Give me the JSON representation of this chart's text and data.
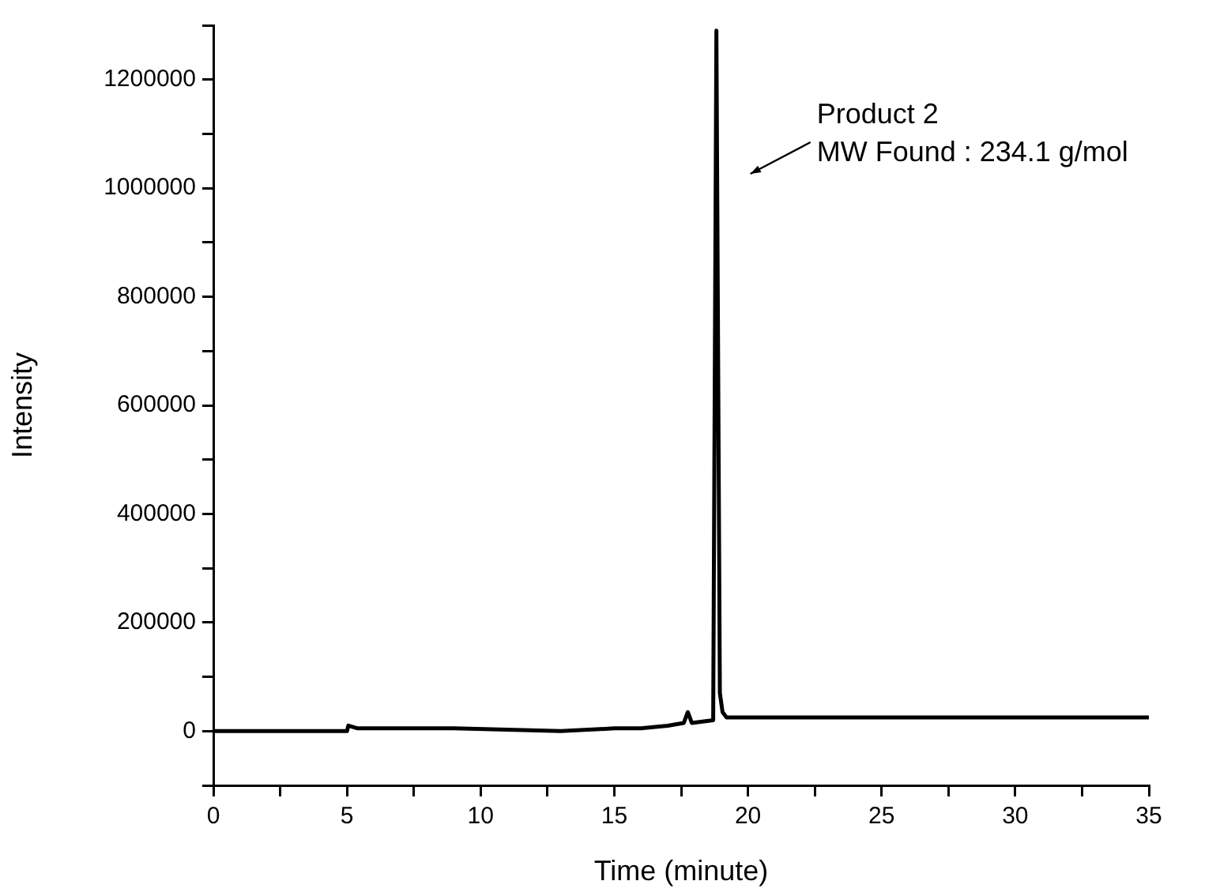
{
  "chart_data": {
    "type": "line",
    "xlabel": "Time (minute)",
    "ylabel": "Intensity",
    "annotations": [
      "Product 2",
      "MW Found : 234.1 g/mol"
    ],
    "x": [
      0,
      5,
      5.05,
      5.4,
      9,
      13,
      15,
      16,
      17,
      17.6,
      17.75,
      17.9,
      18.7,
      18.82,
      18.95,
      19.05,
      19.2,
      25,
      30,
      35
    ],
    "series": [
      {
        "color": "#000000",
        "values": [
          0,
          0,
          10000,
          5000,
          5000,
          0,
          5000,
          5000,
          10000,
          15000,
          35000,
          15000,
          20000,
          1290000,
          70000,
          35000,
          25000,
          25000,
          25000,
          25000
        ]
      }
    ],
    "xlim": [
      0,
      35
    ],
    "xticks": [
      0,
      {
        "value": 2.5,
        "label": null
      },
      5,
      {
        "value": 7.5,
        "label": null
      },
      10,
      {
        "value": 12.5,
        "label": null
      },
      15,
      {
        "value": 17.5,
        "label": null
      },
      20,
      {
        "value": 22.5,
        "label": null
      },
      25,
      {
        "value": 27.5,
        "label": null
      },
      30,
      {
        "value": 32.5,
        "label": null
      },
      35
    ],
    "ylim": [
      -100000,
      1300000
    ],
    "yticks": [
      {
        "value": -100000,
        "label": null
      },
      0,
      {
        "value": 100000,
        "label": null
      },
      200000,
      {
        "value": 300000,
        "label": null
      },
      400000,
      {
        "value": 500000,
        "label": null
      },
      600000,
      {
        "value": 700000,
        "label": null
      },
      800000,
      {
        "value": 900000,
        "label": null
      },
      1000000,
      {
        "value": 1100000,
        "label": null
      },
      1200000,
      {
        "value": 1300000,
        "label": null
      }
    ],
    "grid": false,
    "legend": false,
    "marker": "none",
    "line_style": "solid"
  }
}
